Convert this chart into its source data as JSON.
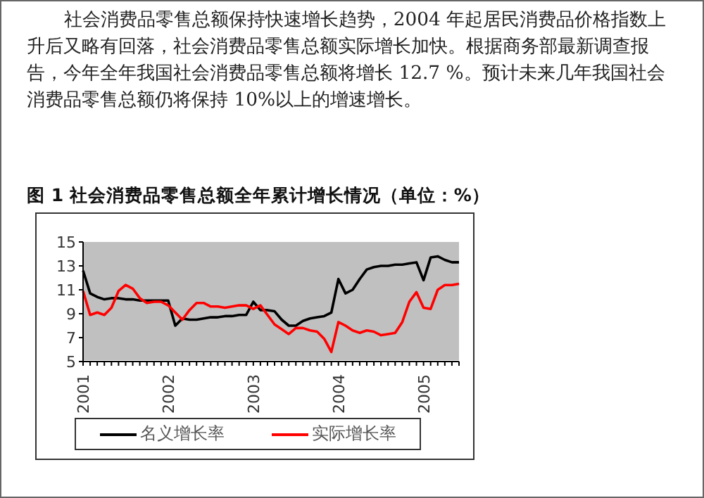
{
  "chart_data": {
    "type": "line",
    "title": "图 1 社会消费品零售总额全年累计增长情况（单位：%）",
    "annotations": [
      "社会消费品零售总额保持快速增长趋势，2004 年起居民消费品价格指数上升后又略有回落，社会消费品零售总额实际增长加快。根据商务部最新调查报告，今年全年我国社会消费品零售总额将增长 12.7 %。预计未来几年我国社会消费品零售总额仍将保持 10%以上的增速增长。"
    ],
    "categories": [
      "2001",
      null,
      null,
      null,
      null,
      null,
      null,
      null,
      null,
      null,
      null,
      null,
      "2002",
      null,
      null,
      null,
      null,
      null,
      null,
      null,
      null,
      null,
      null,
      null,
      "2003",
      null,
      null,
      null,
      null,
      null,
      null,
      null,
      null,
      null,
      null,
      null,
      "2004",
      null,
      null,
      null,
      null,
      null,
      null,
      null,
      null,
      null,
      null,
      null,
      "2005",
      null,
      null,
      null,
      null,
      null
    ],
    "series": [
      {
        "name": "名义增长率",
        "color": "#000000",
        "values": [
          12.6,
          10.7,
          10.4,
          10.2,
          10.3,
          10.3,
          10.2,
          10.2,
          10.1,
          10.1,
          10.1,
          10.1,
          10.1,
          8.0,
          8.6,
          8.5,
          8.5,
          8.6,
          8.7,
          8.7,
          8.8,
          8.8,
          8.9,
          8.9,
          10.0,
          9.3,
          9.3,
          9.2,
          8.5,
          8.0,
          8.0,
          8.4,
          8.6,
          8.7,
          8.8,
          9.1,
          11.9,
          10.7,
          11.0,
          11.9,
          12.7,
          12.9,
          13.0,
          13.0,
          13.1,
          13.1,
          13.2,
          13.3,
          11.8,
          13.7,
          13.8,
          13.5,
          13.3,
          13.3
        ]
      },
      {
        "name": "实际增长率",
        "color": "#ff0000",
        "values": [
          10.9,
          8.9,
          9.1,
          8.9,
          9.5,
          10.9,
          11.4,
          11.1,
          10.3,
          9.9,
          10.0,
          10.0,
          9.7,
          9.1,
          8.5,
          9.3,
          9.9,
          9.9,
          9.6,
          9.6,
          9.5,
          9.6,
          9.7,
          9.7,
          9.4,
          9.7,
          8.9,
          8.1,
          7.7,
          7.3,
          7.8,
          7.8,
          7.6,
          7.5,
          6.9,
          5.8,
          8.3,
          8.0,
          7.6,
          7.4,
          7.6,
          7.5,
          7.2,
          7.3,
          7.4,
          8.3,
          10.0,
          10.8,
          9.5,
          9.4,
          11.0,
          11.4,
          11.4,
          11.5
        ]
      }
    ],
    "ylim": [
      5,
      15
    ],
    "yticks": [
      5,
      7,
      9,
      11,
      13,
      15
    ],
    "grid": false,
    "legend": "bottom",
    "marker": "none",
    "line_style": "solid"
  }
}
